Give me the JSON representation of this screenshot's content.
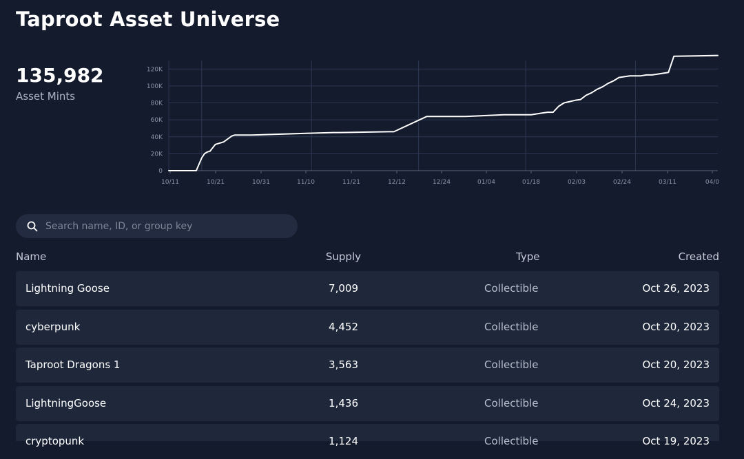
{
  "header": {
    "title": "Taproot Asset Universe"
  },
  "stats": {
    "value": "135,982",
    "label": "Asset Mints"
  },
  "chart_data": {
    "type": "line",
    "x_labels": [
      "10/11",
      "10/21",
      "10/31",
      "11/10",
      "11/21",
      "12/12",
      "12/24",
      "01/04",
      "01/18",
      "02/03",
      "02/24",
      "03/11",
      "04/0"
    ],
    "y_ticks": [
      "0",
      "20K",
      "40K",
      "60K",
      "80K",
      "100K",
      "120K"
    ],
    "ylim": [
      0,
      130000
    ],
    "grid": true,
    "series": [
      {
        "x": [
          0.0,
          0.05,
          0.06,
          0.065,
          0.07,
          0.075,
          0.085,
          0.095,
          0.1,
          0.115,
          0.12,
          0.125,
          0.13,
          0.15,
          0.25,
          0.3,
          0.31,
          0.4,
          0.41,
          0.47,
          0.52,
          0.53,
          0.54,
          0.61,
          0.63,
          0.65,
          0.66,
          0.68,
          0.69,
          0.7,
          0.71,
          0.72,
          0.74,
          0.75,
          0.76,
          0.77,
          0.78,
          0.79,
          0.8,
          0.81,
          0.82,
          0.83,
          0.84,
          0.86,
          0.87,
          0.88,
          0.89,
          0.91,
          0.92,
          1.0
        ],
        "values": [
          0,
          0,
          15000,
          20000,
          22000,
          23000,
          31000,
          33000,
          34000,
          41000,
          42000,
          42000,
          42000,
          42000,
          44000,
          45000,
          45000,
          46000,
          46000,
          64000,
          64000,
          64000,
          64000,
          66000,
          66000,
          66000,
          66000,
          68000,
          69000,
          69000,
          76000,
          80000,
          83000,
          84000,
          89000,
          92000,
          96000,
          99000,
          103000,
          106000,
          110000,
          111000,
          112000,
          112000,
          113000,
          113000,
          114000,
          116000,
          135000,
          136000
        ]
      }
    ]
  },
  "search": {
    "placeholder": "Search name, ID, or group key"
  },
  "table": {
    "columns": {
      "name": "Name",
      "supply": "Supply",
      "type": "Type",
      "created": "Created"
    },
    "rows": [
      {
        "name": "Lightning Goose",
        "supply": "7,009",
        "type": "Collectible",
        "created": "Oct 26, 2023"
      },
      {
        "name": "cyberpunk",
        "supply": "4,452",
        "type": "Collectible",
        "created": "Oct 20, 2023"
      },
      {
        "name": "Taproot Dragons 1",
        "supply": "3,563",
        "type": "Collectible",
        "created": "Oct 20, 2023"
      },
      {
        "name": "LightningGoose",
        "supply": "1,436",
        "type": "Collectible",
        "created": "Oct 24, 2023"
      },
      {
        "name": "cryptopunk",
        "supply": "1,124",
        "type": "Collectible",
        "created": "Oct 19, 2023"
      }
    ]
  },
  "colors": {
    "background": "#141b2d",
    "row_bg": "#1f283b",
    "grid_line": "#2c3752",
    "series_line": "#ffffff"
  }
}
